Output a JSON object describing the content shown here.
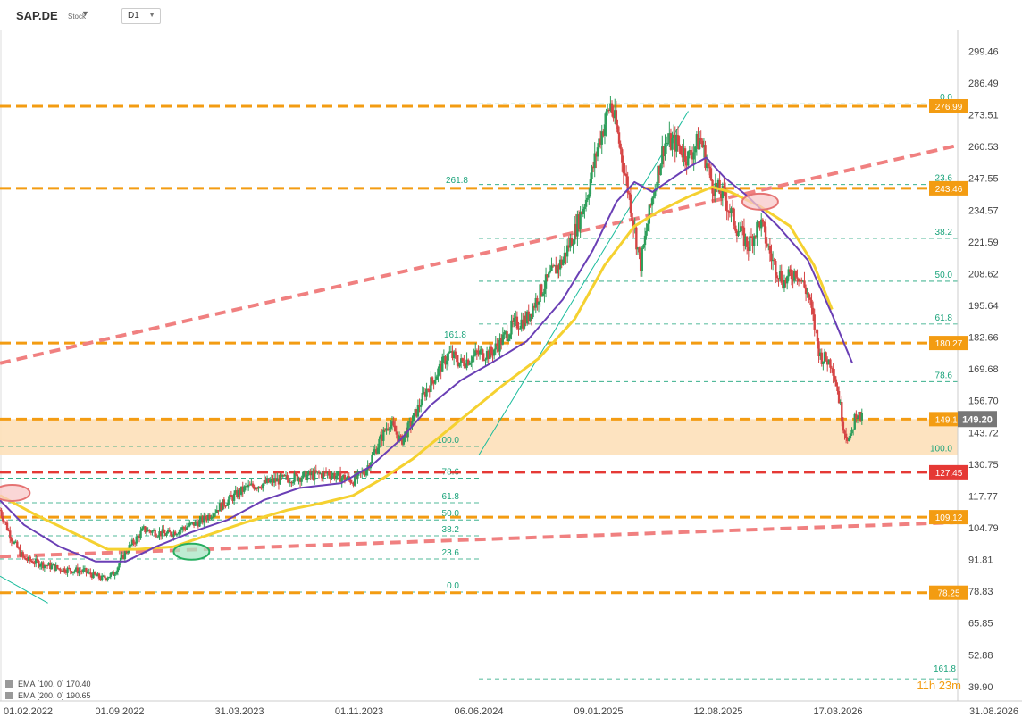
{
  "header": {
    "symbol": "SAP.DE",
    "symbol_type": "Stock",
    "timeframe": "D1"
  },
  "legend": [
    {
      "label": "EMA [100, 0] 170.40"
    },
    {
      "label": "EMA [200, 0] 190.65"
    }
  ],
  "chart_data": {
    "type": "candlestick",
    "symbol": "SAP.DE",
    "timeframe": "D1",
    "x_ticks": [
      "01.02.2022",
      "01.09.2022",
      "31.03.2023",
      "01.11.2023",
      "06.06.2024",
      "09.01.2025",
      "12.08.2025",
      "17.03.2026",
      "31.08.2026"
    ],
    "y_ticks": [
      299.46,
      286.49,
      273.51,
      260.53,
      247.55,
      234.57,
      221.59,
      208.62,
      195.64,
      182.66,
      169.68,
      156.7,
      143.72,
      130.75,
      117.77,
      104.79,
      91.81,
      78.83,
      65.85,
      52.88,
      39.9
    ],
    "ylim": [
      34.0,
      308.0
    ],
    "grid": false,
    "last_price": "149.20",
    "price_series": [
      {
        "t": 0.0,
        "v": 112
      },
      {
        "t": 0.1,
        "v": 100
      },
      {
        "t": 0.2,
        "v": 92
      },
      {
        "t": 0.35,
        "v": 90
      },
      {
        "t": 0.5,
        "v": 88
      },
      {
        "t": 0.7,
        "v": 87
      },
      {
        "t": 0.85,
        "v": 84
      },
      {
        "t": 0.95,
        "v": 86
      },
      {
        "t": 1.05,
        "v": 95
      },
      {
        "t": 1.2,
        "v": 104
      },
      {
        "t": 1.4,
        "v": 102
      },
      {
        "t": 1.55,
        "v": 105
      },
      {
        "t": 1.7,
        "v": 108
      },
      {
        "t": 1.85,
        "v": 114
      },
      {
        "t": 2.05,
        "v": 121
      },
      {
        "t": 2.3,
        "v": 124
      },
      {
        "t": 2.55,
        "v": 126
      },
      {
        "t": 2.75,
        "v": 127
      },
      {
        "t": 2.95,
        "v": 124
      },
      {
        "t": 3.05,
        "v": 128
      },
      {
        "t": 3.15,
        "v": 138
      },
      {
        "t": 3.25,
        "v": 148
      },
      {
        "t": 3.35,
        "v": 140
      },
      {
        "t": 3.45,
        "v": 149
      },
      {
        "t": 3.55,
        "v": 160
      },
      {
        "t": 3.65,
        "v": 168
      },
      {
        "t": 3.75,
        "v": 176
      },
      {
        "t": 3.85,
        "v": 172
      },
      {
        "t": 4.0,
        "v": 176
      },
      {
        "t": 4.1,
        "v": 176
      },
      {
        "t": 4.2,
        "v": 182
      },
      {
        "t": 4.3,
        "v": 188
      },
      {
        "t": 4.4,
        "v": 190
      },
      {
        "t": 4.5,
        "v": 200
      },
      {
        "t": 4.6,
        "v": 208
      },
      {
        "t": 4.7,
        "v": 214
      },
      {
        "t": 4.8,
        "v": 226
      },
      {
        "t": 4.9,
        "v": 240
      },
      {
        "t": 5.0,
        "v": 262
      },
      {
        "t": 5.1,
        "v": 278
      },
      {
        "t": 5.15,
        "v": 268
      },
      {
        "t": 5.25,
        "v": 242
      },
      {
        "t": 5.35,
        "v": 212
      },
      {
        "t": 5.45,
        "v": 240
      },
      {
        "t": 5.55,
        "v": 262
      },
      {
        "t": 5.65,
        "v": 262
      },
      {
        "t": 5.75,
        "v": 256
      },
      {
        "t": 5.85,
        "v": 264
      },
      {
        "t": 5.95,
        "v": 245
      },
      {
        "t": 6.05,
        "v": 240
      },
      {
        "t": 6.15,
        "v": 228
      },
      {
        "t": 6.25,
        "v": 220
      },
      {
        "t": 6.35,
        "v": 230
      },
      {
        "t": 6.45,
        "v": 214
      },
      {
        "t": 6.55,
        "v": 205
      },
      {
        "t": 6.65,
        "v": 210
      },
      {
        "t": 6.75,
        "v": 200
      },
      {
        "t": 6.8,
        "v": 188
      },
      {
        "t": 6.85,
        "v": 175
      },
      {
        "t": 6.95,
        "v": 172
      },
      {
        "t": 7.0,
        "v": 160
      },
      {
        "t": 7.05,
        "v": 145
      },
      {
        "t": 7.1,
        "v": 140
      },
      {
        "t": 7.15,
        "v": 152
      },
      {
        "t": 7.2,
        "v": 149
      }
    ],
    "ema_100": [
      {
        "t": 0.0,
        "v": 116
      },
      {
        "t": 0.2,
        "v": 106
      },
      {
        "t": 0.5,
        "v": 97
      },
      {
        "t": 0.8,
        "v": 91
      },
      {
        "t": 1.05,
        "v": 91
      },
      {
        "t": 1.3,
        "v": 97
      },
      {
        "t": 1.6,
        "v": 103
      },
      {
        "t": 1.9,
        "v": 108
      },
      {
        "t": 2.2,
        "v": 116
      },
      {
        "t": 2.5,
        "v": 121
      },
      {
        "t": 2.85,
        "v": 123
      },
      {
        "t": 3.1,
        "v": 130
      },
      {
        "t": 3.35,
        "v": 141
      },
      {
        "t": 3.6,
        "v": 155
      },
      {
        "t": 3.85,
        "v": 165
      },
      {
        "t": 4.1,
        "v": 172
      },
      {
        "t": 4.4,
        "v": 181
      },
      {
        "t": 4.7,
        "v": 198
      },
      {
        "t": 4.95,
        "v": 218
      },
      {
        "t": 5.15,
        "v": 238
      },
      {
        "t": 5.3,
        "v": 246
      },
      {
        "t": 5.45,
        "v": 242
      },
      {
        "t": 5.6,
        "v": 247
      },
      {
        "t": 5.75,
        "v": 252
      },
      {
        "t": 5.9,
        "v": 256
      },
      {
        "t": 6.05,
        "v": 248
      },
      {
        "t": 6.25,
        "v": 240
      },
      {
        "t": 6.5,
        "v": 228
      },
      {
        "t": 6.75,
        "v": 214
      },
      {
        "t": 6.95,
        "v": 192
      },
      {
        "t": 7.12,
        "v": 172
      }
    ],
    "ema_200": [
      {
        "t": 0.0,
        "v": 118
      },
      {
        "t": 0.3,
        "v": 110
      },
      {
        "t": 0.6,
        "v": 103
      },
      {
        "t": 0.9,
        "v": 96
      },
      {
        "t": 1.15,
        "v": 96
      },
      {
        "t": 1.45,
        "v": 97
      },
      {
        "t": 1.75,
        "v": 102
      },
      {
        "t": 2.05,
        "v": 107
      },
      {
        "t": 2.4,
        "v": 112
      },
      {
        "t": 2.7,
        "v": 115
      },
      {
        "t": 2.95,
        "v": 118
      },
      {
        "t": 3.2,
        "v": 125
      },
      {
        "t": 3.45,
        "v": 133
      },
      {
        "t": 3.7,
        "v": 143
      },
      {
        "t": 3.95,
        "v": 153
      },
      {
        "t": 4.2,
        "v": 163
      },
      {
        "t": 4.5,
        "v": 174
      },
      {
        "t": 4.8,
        "v": 190
      },
      {
        "t": 5.05,
        "v": 212
      },
      {
        "t": 5.3,
        "v": 228
      },
      {
        "t": 5.5,
        "v": 234
      },
      {
        "t": 5.75,
        "v": 240
      },
      {
        "t": 5.95,
        "v": 244
      },
      {
        "t": 6.1,
        "v": 242
      },
      {
        "t": 6.35,
        "v": 236
      },
      {
        "t": 6.6,
        "v": 228
      },
      {
        "t": 6.8,
        "v": 212
      },
      {
        "t": 6.95,
        "v": 194
      }
    ],
    "horizontal_levels": [
      {
        "value": 276.99,
        "label": "276.99",
        "color": "#f39c12",
        "dash": "12,6",
        "width": 3
      },
      {
        "value": 243.46,
        "label": "243.46",
        "color": "#f39c12",
        "dash": "12,6",
        "width": 3
      },
      {
        "value": 180.27,
        "label": "180.27",
        "color": "#f39c12",
        "dash": "12,6",
        "width": 3
      },
      {
        "value": 149.16,
        "label": "149.16",
        "color": "#f39c12",
        "dash": "12,6",
        "width": 3
      },
      {
        "value": 127.45,
        "label": "127.45",
        "color": "#e53935",
        "dash": "12,6",
        "width": 3
      },
      {
        "value": 109.12,
        "label": "109.12",
        "color": "#f39c12",
        "dash": "12,6",
        "width": 3
      },
      {
        "value": 78.25,
        "label": "78.25",
        "color": "#f39c12",
        "dash": "12,6",
        "width": 3
      }
    ],
    "support_zone": {
      "from": 134.5,
      "to": 149.16,
      "color": "#fde0b9"
    },
    "fib_retracement_upper": [
      {
        "label": "0.0",
        "value": 278.0
      },
      {
        "label": "23.6",
        "value": 245.0
      },
      {
        "label": "38.2",
        "value": 223.0
      },
      {
        "label": "50.0",
        "value": 205.5
      },
      {
        "label": "61.8",
        "value": 188.0
      },
      {
        "label": "78.6",
        "value": 164.5
      },
      {
        "label": "100.0",
        "value": 134.5
      }
    ],
    "fib_retracement_lower": [
      {
        "label": "0.0",
        "value": 78.5
      },
      {
        "label": "23.6",
        "value": 92.0
      },
      {
        "label": "38.2",
        "value": 101.5
      },
      {
        "label": "50.0",
        "value": 108.0
      },
      {
        "label": "61.8",
        "value": 115.0
      },
      {
        "label": "78.6",
        "value": 125.0
      },
      {
        "label": "100.0",
        "value": 138.0
      }
    ],
    "fib_extensions": [
      {
        "label": "261.8",
        "value": 243.46
      },
      {
        "label": "161.8",
        "value": 180.27
      },
      {
        "label": "161.8",
        "value": 46.0
      }
    ],
    "trendlines": [
      {
        "from": {
          "t": 0.0,
          "v": 172
        },
        "to": {
          "t": 8.0,
          "v": 261
        },
        "color": "#f08080",
        "dash": "12,7",
        "width": 4
      },
      {
        "from": {
          "t": 0.0,
          "v": 93
        },
        "to": {
          "t": 8.0,
          "v": 107
        },
        "color": "#f08080",
        "dash": "12,7",
        "width": 4
      },
      {
        "from": {
          "t": 4.0,
          "v": 134.5
        },
        "to": {
          "t": 5.75,
          "v": 275
        },
        "color": "#1abc9c",
        "dash": "",
        "width": 1
      },
      {
        "from": {
          "t": 0.0,
          "v": 85
        },
        "to": {
          "t": 0.4,
          "v": 74
        },
        "color": "#1abc9c",
        "dash": "",
        "width": 1
      }
    ],
    "markers": [
      {
        "t": 0.1,
        "v": 119,
        "color": "#e57373",
        "fill": "#f8c8c8"
      },
      {
        "t": 1.6,
        "v": 95,
        "color": "#27ae60",
        "fill": "#a8e6c4"
      },
      {
        "t": 6.35,
        "v": 238,
        "color": "#e57373",
        "fill": "#f8c8c8"
      }
    ],
    "annotation": "11h 23m"
  }
}
